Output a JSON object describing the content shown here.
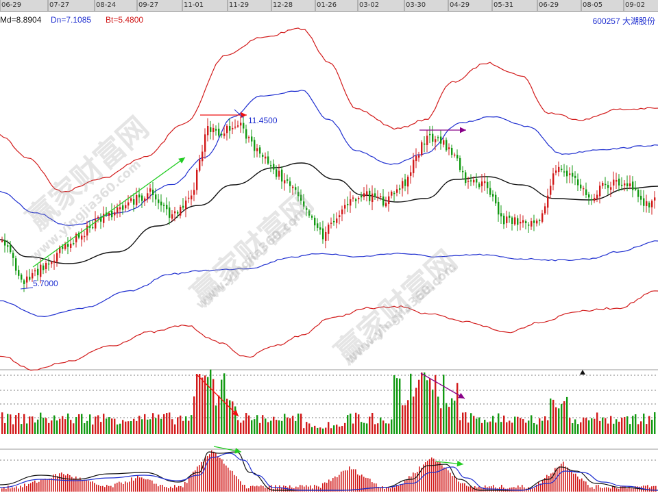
{
  "header": {
    "md_label": "Md=8.8904",
    "dn_label": "Dn=7.1085",
    "bt_label": "Bt=5.4800",
    "stock_title": "600257  大湖股份"
  },
  "date_ticks": [
    "06-29",
    "07-27",
    "08-24",
    "09-27",
    "11-01",
    "11-29",
    "12-28",
    "01-26",
    "03-02",
    "03-30",
    "04-29",
    "05-31",
    "06-29",
    "08-05",
    "09-02"
  ],
  "annotations": {
    "low_label": "5.7000",
    "high_label": "11.4500"
  },
  "watermark": {
    "text": "赢家财富网",
    "url": "www.yingjia360.com"
  },
  "colors": {
    "up": "#d21a1a",
    "down": "#119911",
    "band_outer": "#d21a1a",
    "band_inner": "#1f2fd0",
    "mid": "#111111",
    "arrow_green": "#22cc22",
    "arrow_red": "#ee1111",
    "arrow_purple": "#880088"
  },
  "chart_data": [
    {
      "type": "line",
      "description_panel": "price",
      "x": [
        "06-29",
        "07-27",
        "08-24",
        "09-27",
        "11-01",
        "11-29",
        "12-28",
        "01-26",
        "03-02",
        "03-30",
        "04-29",
        "05-31",
        "06-29",
        "08-05",
        "09-02"
      ],
      "series": [
        {
          "name": "Md",
          "values": [
            7.2,
            6.3,
            6.9,
            7.6,
            8.5,
            9.3,
            9.5,
            8.9,
            8.1,
            8.0,
            8.2,
            8.3,
            7.9,
            7.9,
            8.2
          ]
        },
        {
          "name": "Dn",
          "values": [
            4.9,
            4.9,
            5.3,
            5.9,
            6.5,
            6.6,
            6.8,
            6.9,
            7.0,
            7.0,
            6.9,
            6.8,
            6.8,
            7.0,
            7.4
          ]
        },
        {
          "name": "Bt",
          "values": [
            3.4,
            3.6,
            4.2,
            4.6,
            5.0,
            4.9,
            5.5,
            5.9,
            6.2,
            6.1,
            5.8,
            5.5,
            5.6,
            6.0,
            6.6
          ]
        }
      ],
      "peaks": {
        "low": 5.7,
        "high": 11.45
      }
    },
    {
      "type": "bar",
      "description_panel": "volume",
      "x": [
        "06-29",
        "07-27",
        "08-24",
        "09-27",
        "11-01",
        "11-29",
        "12-28",
        "01-26",
        "03-02",
        "03-30",
        "04-29",
        "05-31",
        "06-29",
        "08-05",
        "09-02"
      ],
      "values": [
        10,
        14,
        18,
        20,
        45,
        60,
        22,
        10,
        12,
        30,
        68,
        12,
        25,
        14,
        10
      ]
    },
    {
      "type": "line",
      "description_panel": "macd",
      "x": [
        "06-29",
        "07-27",
        "08-24",
        "09-27",
        "11-01",
        "11-29",
        "12-28",
        "01-26",
        "03-02",
        "03-30",
        "04-29",
        "05-31",
        "06-29",
        "08-05",
        "09-02"
      ],
      "series": [
        {
          "name": "DIF",
          "values": [
            0.3,
            0.5,
            0.8,
            0.6,
            1.7,
            1.6,
            0.4,
            0.2,
            0.3,
            0.6,
            1.3,
            0.1,
            0.9,
            0.4,
            0.2
          ]
        },
        {
          "name": "DEA",
          "values": [
            0.2,
            0.4,
            0.6,
            0.6,
            1.3,
            1.5,
            0.6,
            0.2,
            0.3,
            0.5,
            1.1,
            0.2,
            0.8,
            0.5,
            0.2
          ]
        }
      ]
    }
  ]
}
